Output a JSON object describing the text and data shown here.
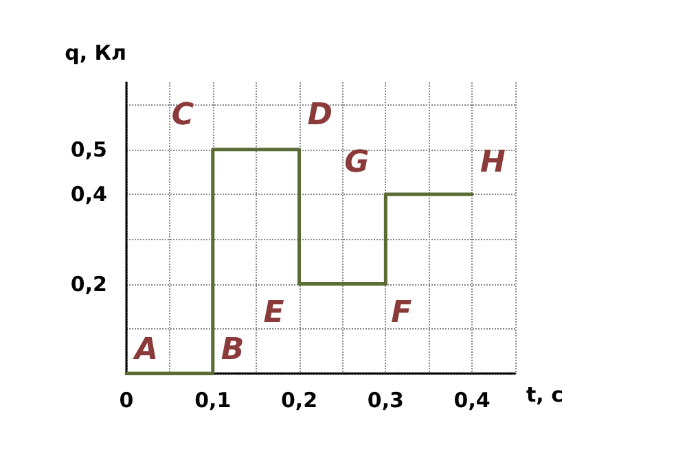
{
  "chart_data": {
    "type": "line",
    "xlabel": "t, с",
    "ylabel": "q, Кл",
    "x": [
      0,
      0.1,
      0.1,
      0.2,
      0.2,
      0.3,
      0.3,
      0.4
    ],
    "series": [
      {
        "color": "#5b6b34",
        "values": [
          0,
          0,
          0.5,
          0.5,
          0.2,
          0.2,
          0.4,
          0.4
        ]
      }
    ],
    "xlim": [
      0,
      0.45
    ],
    "ylim": [
      0,
      0.65
    ],
    "xticks": [
      {
        "value": 0,
        "label": "0"
      },
      {
        "value": 0.05,
        "label": null
      },
      {
        "value": 0.1,
        "label": "0,1"
      },
      {
        "value": 0.15,
        "label": null
      },
      {
        "value": 0.2,
        "label": "0,2"
      },
      {
        "value": 0.25,
        "label": null
      },
      {
        "value": 0.3,
        "label": "0,3"
      },
      {
        "value": 0.35,
        "label": null
      },
      {
        "value": 0.4,
        "label": "0,4"
      },
      {
        "value": 0.45,
        "label": null
      }
    ],
    "yticks": [
      {
        "value": 0,
        "label": null
      },
      {
        "value": 0.1,
        "label": null
      },
      {
        "value": 0.2,
        "label": "0,2"
      },
      {
        "value": 0.3,
        "label": null
      },
      {
        "value": 0.4,
        "label": "0,4"
      },
      {
        "value": 0.5,
        "label": "0,5"
      },
      {
        "value": 0.6,
        "label": null
      }
    ],
    "grid": true,
    "annotations": [
      {
        "text": "A",
        "x": 0,
        "y": 0
      },
      {
        "text": "B",
        "x": 0.1,
        "y": 0
      },
      {
        "text": "C",
        "x": 0.1,
        "y": 0.5
      },
      {
        "text": "D",
        "x": 0.2,
        "y": 0.5
      },
      {
        "text": "E",
        "x": 0.2,
        "y": 0.2
      },
      {
        "text": "F",
        "x": 0.3,
        "y": 0.2
      },
      {
        "text": "G",
        "x": 0.3,
        "y": 0.4
      },
      {
        "text": "H",
        "x": 0.4,
        "y": 0.4
      }
    ]
  }
}
